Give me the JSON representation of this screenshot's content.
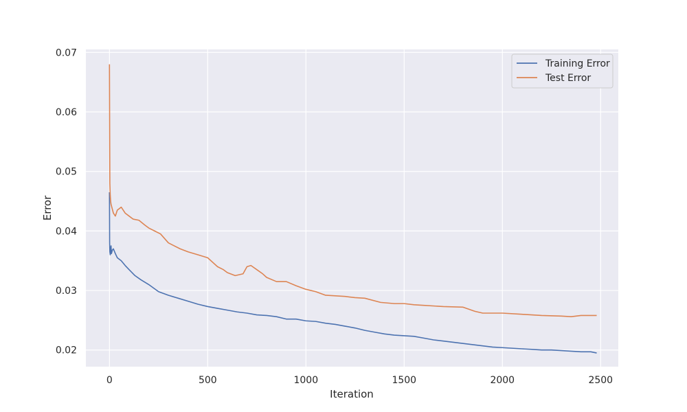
{
  "chart_data": {
    "type": "line",
    "title": "",
    "xlabel": "Iteration",
    "ylabel": "Error",
    "xlim": [
      -120,
      2590
    ],
    "ylim": [
      0.0172,
      0.0705
    ],
    "xticks": [
      0,
      500,
      1000,
      1500,
      2000,
      2500
    ],
    "xtick_labels": [
      "0",
      "500",
      "1000",
      "1500",
      "2000",
      "2500"
    ],
    "yticks": [
      0.02,
      0.03,
      0.04,
      0.05,
      0.06,
      0.07
    ],
    "ytick_labels": [
      "0.02",
      "0.03",
      "0.04",
      "0.05",
      "0.06",
      "0.07"
    ],
    "grid": true,
    "legend_position": "top-right",
    "background_color": "#eaeaf2",
    "series": [
      {
        "name": "Training Error",
        "color": "#4c72b0",
        "x": [
          0,
          1,
          2,
          4,
          6,
          8,
          10,
          15,
          20,
          30,
          40,
          60,
          80,
          100,
          130,
          160,
          200,
          250,
          300,
          350,
          400,
          450,
          500,
          550,
          600,
          650,
          700,
          750,
          800,
          850,
          900,
          950,
          1000,
          1050,
          1100,
          1150,
          1200,
          1250,
          1300,
          1350,
          1400,
          1450,
          1500,
          1550,
          1600,
          1650,
          1700,
          1750,
          1800,
          1850,
          1900,
          1950,
          2000,
          2050,
          2100,
          2150,
          2200,
          2250,
          2300,
          2350,
          2400,
          2450,
          2480
        ],
        "y": [
          0.0465,
          0.038,
          0.0365,
          0.036,
          0.037,
          0.0375,
          0.0362,
          0.0368,
          0.037,
          0.0362,
          0.0355,
          0.035,
          0.0342,
          0.0335,
          0.0325,
          0.0318,
          0.031,
          0.0298,
          0.0292,
          0.0287,
          0.0282,
          0.0277,
          0.0273,
          0.027,
          0.0267,
          0.0264,
          0.0262,
          0.0259,
          0.0258,
          0.0256,
          0.0252,
          0.0252,
          0.0249,
          0.0248,
          0.0245,
          0.0243,
          0.024,
          0.0237,
          0.0233,
          0.023,
          0.0227,
          0.0225,
          0.0224,
          0.0223,
          0.022,
          0.0217,
          0.0215,
          0.0213,
          0.0211,
          0.0209,
          0.0207,
          0.0205,
          0.0204,
          0.0203,
          0.0202,
          0.0201,
          0.02,
          0.02,
          0.0199,
          0.0198,
          0.0197,
          0.0197,
          0.0195
        ]
      },
      {
        "name": "Test Error",
        "color": "#dd8452",
        "x": [
          0,
          1,
          2,
          4,
          6,
          8,
          12,
          20,
          30,
          40,
          60,
          80,
          100,
          120,
          150,
          180,
          200,
          230,
          260,
          300,
          330,
          360,
          400,
          450,
          500,
          550,
          580,
          600,
          640,
          680,
          700,
          720,
          750,
          780,
          800,
          850,
          900,
          950,
          1000,
          1050,
          1100,
          1200,
          1250,
          1300,
          1380,
          1450,
          1500,
          1550,
          1600,
          1700,
          1800,
          1860,
          1900,
          2000,
          2100,
          2200,
          2300,
          2350,
          2400,
          2480
        ],
        "y": [
          0.068,
          0.058,
          0.048,
          0.046,
          0.045,
          0.0445,
          0.044,
          0.043,
          0.0425,
          0.0435,
          0.044,
          0.043,
          0.0425,
          0.042,
          0.0418,
          0.041,
          0.0405,
          0.04,
          0.0395,
          0.038,
          0.0375,
          0.037,
          0.0365,
          0.036,
          0.0355,
          0.034,
          0.0335,
          0.033,
          0.0325,
          0.0328,
          0.034,
          0.0342,
          0.0335,
          0.0328,
          0.0322,
          0.0315,
          0.0315,
          0.0308,
          0.0302,
          0.0298,
          0.0292,
          0.029,
          0.0288,
          0.0287,
          0.028,
          0.0278,
          0.0278,
          0.0276,
          0.0275,
          0.0273,
          0.0272,
          0.0265,
          0.0262,
          0.0262,
          0.026,
          0.0258,
          0.0257,
          0.0256,
          0.0258,
          0.0258
        ]
      }
    ]
  }
}
